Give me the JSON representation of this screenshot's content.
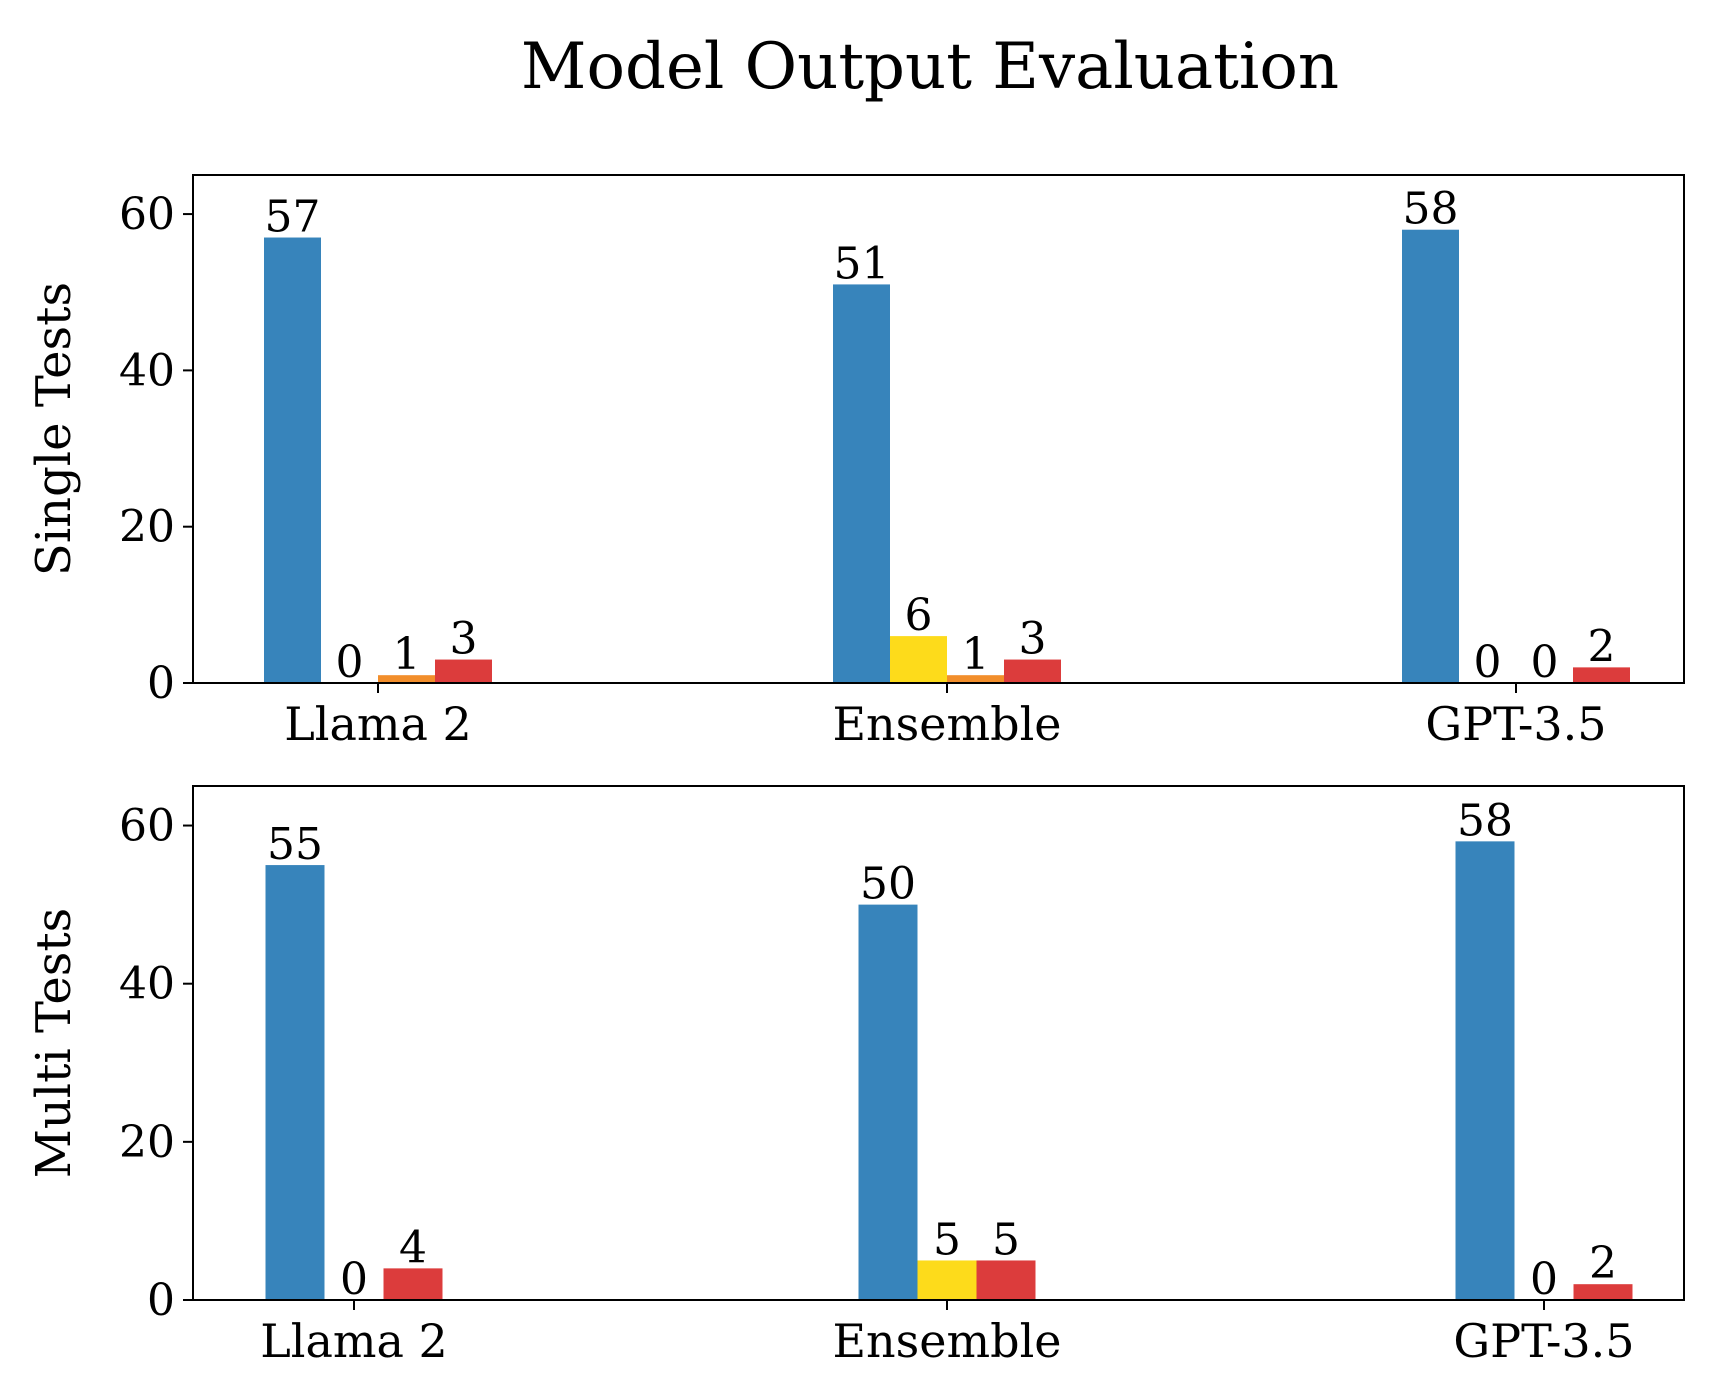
{
  "title": "Model Output Evaluation",
  "chart_data": [
    {
      "type": "bar",
      "ylabel": "Single Tests",
      "ylim": [
        0,
        65
      ],
      "yticks": [
        0,
        20,
        40,
        60
      ],
      "groups": [
        {
          "category": "Llama 2",
          "bars": [
            {
              "value": 57,
              "color": "#3784BB"
            },
            {
              "value": 0,
              "color": "#FDDB1B"
            },
            {
              "value": 1,
              "color": "#F28E2B"
            },
            {
              "value": 3,
              "color": "#DC3C3C"
            }
          ]
        },
        {
          "category": "Ensemble",
          "bars": [
            {
              "value": 51,
              "color": "#3784BB"
            },
            {
              "value": 6,
              "color": "#FDDB1B"
            },
            {
              "value": 1,
              "color": "#F28E2B"
            },
            {
              "value": 3,
              "color": "#DC3C3C"
            }
          ]
        },
        {
          "category": "GPT-3.5",
          "bars": [
            {
              "value": 58,
              "color": "#3784BB"
            },
            {
              "value": 0,
              "color": "#FDDB1B"
            },
            {
              "value": 0,
              "color": "#F28E2B"
            },
            {
              "value": 2,
              "color": "#DC3C3C"
            }
          ]
        }
      ]
    },
    {
      "type": "bar",
      "ylabel": "Multi Tests",
      "ylim": [
        0,
        65
      ],
      "yticks": [
        0,
        20,
        40,
        60
      ],
      "groups": [
        {
          "category": "Llama 2",
          "bars": [
            {
              "value": 55,
              "color": "#3784BB"
            },
            {
              "value": 0,
              "color": "#FDDB1B"
            },
            {
              "value": 4,
              "color": "#DC3C3C"
            }
          ]
        },
        {
          "category": "Ensemble",
          "bars": [
            {
              "value": 50,
              "color": "#3784BB"
            },
            {
              "value": 5,
              "color": "#FDDB1B"
            },
            {
              "value": 5,
              "color": "#DC3C3C"
            }
          ]
        },
        {
          "category": "GPT-3.5",
          "bars": [
            {
              "value": 58,
              "color": "#3784BB"
            },
            {
              "value": 0,
              "color": "#FDDB1B"
            },
            {
              "value": 2,
              "color": "#DC3C3C"
            }
          ]
        }
      ]
    }
  ]
}
